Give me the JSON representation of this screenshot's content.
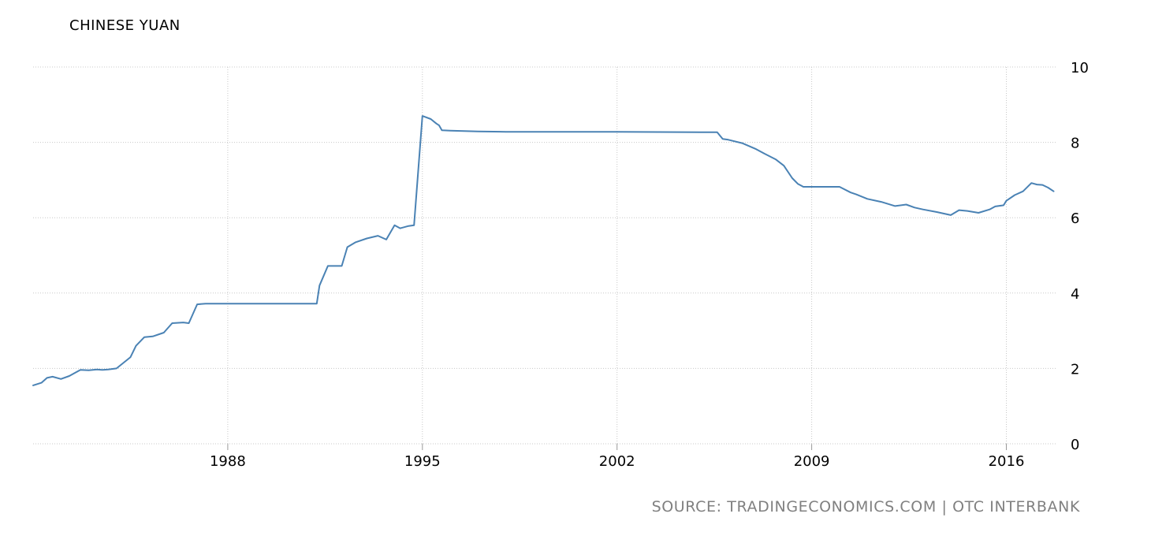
{
  "chart_data": {
    "type": "line",
    "title": "CHINESE YUAN",
    "source": "SOURCE: TRADINGECONOMICS.COM | OTC INTERBANK",
    "xlabel": "",
    "ylabel": "",
    "xlim": [
      1981.0,
      2017.8
    ],
    "ylim": [
      0,
      10
    ],
    "x_ticks": [
      1988,
      1995,
      2002,
      2009,
      2016
    ],
    "y_ticks": [
      0,
      2,
      4,
      6,
      8,
      10
    ],
    "grid": true,
    "line_color": "#4a82b4",
    "series": [
      {
        "x": [
          1981.0,
          1981.3,
          1981.5,
          1981.7,
          1982.0,
          1982.3,
          1982.5,
          1982.7,
          1983.0,
          1983.3,
          1983.5,
          1983.7,
          1984.0,
          1984.5,
          1984.7,
          1985.0,
          1985.3,
          1985.7,
          1986.0,
          1986.4,
          1986.6,
          1986.9,
          1987.2,
          1987.5,
          1987.6,
          1987.7,
          1987.8,
          1989.0,
          1990.0,
          1990.8,
          1991.0,
          1991.1,
          1991.2,
          1991.3,
          1991.6,
          1992.0,
          1992.1,
          1992.3,
          1992.6,
          1993.0,
          1993.4,
          1993.7,
          1994.0,
          1994.2,
          1994.5,
          1994.7,
          1995.0,
          1995.3,
          1995.5,
          1995.6,
          1995.7,
          1996.0,
          1996.5,
          1997.0,
          1998.0,
          2002.0,
          2005.0,
          2005.6,
          2005.8,
          2006.0,
          2006.5,
          2007.0,
          2007.3,
          2007.7,
          2008.0,
          2008.3,
          2008.5,
          2008.7,
          2009.0,
          2009.5,
          2010.0,
          2010.4,
          2010.6,
          2011.0,
          2011.5,
          2012.0,
          2012.4,
          2012.7,
          2013.0,
          2013.5,
          2014.0,
          2014.3,
          2014.6,
          2015.0,
          2015.4,
          2015.6,
          2015.9,
          2016.0,
          2016.3,
          2016.6,
          2016.9,
          2017.1,
          2017.3,
          2017.5,
          2017.7
        ],
        "y": [
          1.55,
          1.62,
          1.75,
          1.78,
          1.72,
          1.8,
          1.88,
          1.96,
          1.95,
          1.97,
          1.96,
          1.97,
          2.0,
          2.3,
          2.6,
          2.83,
          2.85,
          2.95,
          3.2,
          3.22,
          3.2,
          3.7,
          3.72,
          3.72,
          3.72,
          3.72,
          3.72,
          3.72,
          3.72,
          3.72,
          3.72,
          3.72,
          3.72,
          4.2,
          4.72,
          4.72,
          4.72,
          5.22,
          5.35,
          5.45,
          5.52,
          5.42,
          5.8,
          5.72,
          5.78,
          5.8,
          8.7,
          8.62,
          8.5,
          8.45,
          8.32,
          8.31,
          8.3,
          8.29,
          8.28,
          8.28,
          8.27,
          8.27,
          8.09,
          8.07,
          7.98,
          7.82,
          7.7,
          7.55,
          7.38,
          7.05,
          6.9,
          6.82,
          6.82,
          6.82,
          6.82,
          6.67,
          6.62,
          6.5,
          6.42,
          6.31,
          6.35,
          6.27,
          6.22,
          6.15,
          6.07,
          6.2,
          6.18,
          6.13,
          6.22,
          6.3,
          6.33,
          6.45,
          6.6,
          6.7,
          6.92,
          6.88,
          6.87,
          6.8,
          6.7
        ]
      }
    ]
  }
}
